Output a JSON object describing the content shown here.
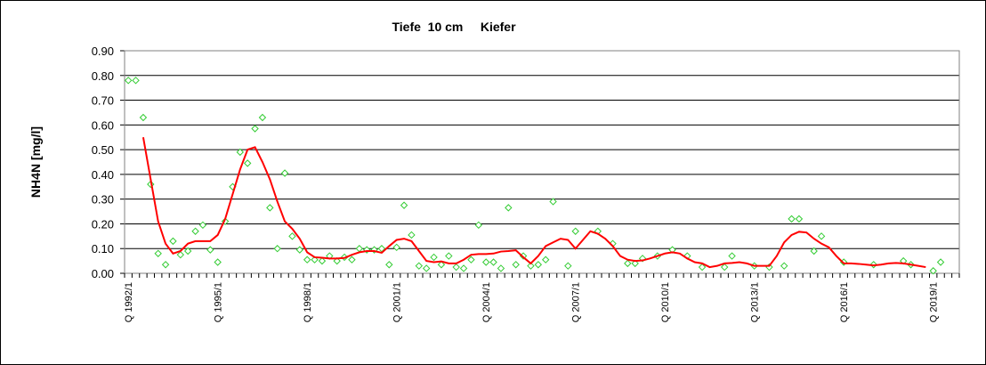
{
  "chart_data": {
    "type": "line",
    "title": "Tiefe  10 cm     Kiefer",
    "y_label": "NH4N [mg/l]",
    "categories": [
      "Q 1992/1",
      null,
      null,
      null,
      null,
      null,
      null,
      null,
      null,
      null,
      null,
      null,
      "Q 1995/1",
      null,
      null,
      null,
      null,
      null,
      null,
      null,
      null,
      null,
      null,
      null,
      "Q 1998/1",
      null,
      null,
      null,
      null,
      null,
      null,
      null,
      null,
      null,
      null,
      null,
      "Q 2001/1",
      null,
      null,
      null,
      null,
      null,
      null,
      null,
      null,
      null,
      null,
      null,
      "Q 2004/1",
      null,
      null,
      null,
      null,
      null,
      null,
      null,
      null,
      null,
      null,
      null,
      "Q 2007/1",
      null,
      null,
      null,
      null,
      null,
      null,
      null,
      null,
      null,
      null,
      null,
      "Q 2010/1",
      null,
      null,
      null,
      null,
      null,
      null,
      null,
      null,
      null,
      null,
      null,
      "Q 2013/1",
      null,
      null,
      null,
      null,
      null,
      null,
      null,
      null,
      null,
      null,
      null,
      "Q 2016/1",
      null,
      null,
      null,
      null,
      null,
      null,
      null,
      null,
      null,
      null,
      null,
      "Q 2019/1",
      null,
      null,
      null
    ],
    "series": [
      {
        "mode": "markers",
        "color": "#33cc33",
        "values": [
          0.78,
          0.78,
          0.63,
          0.36,
          0.08,
          0.035,
          0.13,
          0.075,
          0.09,
          0.17,
          0.195,
          0.095,
          0.045,
          0.21,
          0.35,
          0.49,
          0.445,
          0.585,
          0.63,
          0.265,
          0.1,
          0.405,
          0.15,
          0.095,
          0.055,
          0.055,
          0.05,
          0.07,
          0.05,
          0.065,
          0.055,
          0.1,
          0.095,
          0.095,
          0.1,
          0.035,
          0.105,
          0.275,
          0.155,
          0.03,
          0.02,
          0.065,
          0.035,
          0.07,
          0.025,
          0.02,
          0.055,
          0.195,
          0.045,
          0.045,
          0.02,
          0.265,
          0.035,
          0.07,
          0.03,
          0.035,
          0.055,
          0.29,
          null,
          0.03,
          0.17,
          null,
          null,
          0.17,
          null,
          0.12,
          null,
          0.04,
          0.04,
          0.06,
          null,
          0.07,
          null,
          0.095,
          null,
          0.07,
          null,
          0.025,
          null,
          null,
          0.025,
          0.07,
          null,
          null,
          0.03,
          null,
          0.025,
          null,
          0.03,
          0.22,
          0.22,
          null,
          0.09,
          0.15,
          null,
          null,
          0.045,
          null,
          null,
          null,
          0.035,
          null,
          null,
          null,
          0.05,
          0.035,
          null,
          null,
          0.01,
          0.045,
          null,
          null
        ]
      },
      {
        "mode": "line",
        "color": "#ff0000",
        "values": [
          null,
          null,
          0.55,
          0.38,
          0.21,
          0.12,
          0.08,
          0.09,
          0.12,
          0.13,
          0.13,
          0.13,
          0.155,
          0.22,
          0.32,
          0.42,
          0.5,
          0.51,
          0.45,
          0.38,
          0.29,
          0.21,
          0.18,
          0.14,
          0.085,
          0.065,
          0.063,
          0.06,
          0.06,
          0.062,
          0.075,
          0.085,
          0.09,
          0.09,
          0.083,
          0.11,
          0.135,
          0.14,
          0.13,
          0.09,
          0.05,
          0.045,
          0.048,
          0.04,
          0.04,
          0.055,
          0.075,
          0.078,
          0.078,
          0.08,
          0.088,
          0.09,
          0.093,
          0.065,
          0.04,
          0.07,
          0.11,
          0.125,
          0.14,
          0.135,
          0.1,
          0.135,
          0.17,
          0.16,
          0.14,
          0.11,
          0.07,
          0.055,
          0.05,
          0.052,
          0.06,
          0.07,
          0.08,
          0.085,
          0.08,
          0.06,
          0.045,
          0.04,
          0.025,
          0.03,
          0.04,
          0.042,
          0.045,
          0.04,
          0.03,
          0.03,
          0.03,
          0.07,
          0.125,
          0.155,
          0.168,
          0.165,
          0.14,
          0.12,
          0.105,
          0.07,
          0.04,
          0.04,
          0.038,
          0.035,
          0.032,
          0.035,
          0.04,
          0.042,
          0.04,
          0.035,
          0.03,
          0.025,
          null,
          null,
          null,
          null
        ]
      }
    ],
    "ylim": [
      0,
      0.9
    ],
    "yticks": [
      {
        "value": 0,
        "label": "0.00"
      },
      {
        "value": 0.1,
        "label": "0.10"
      },
      {
        "value": 0.2,
        "label": "0.20"
      },
      {
        "value": 0.3,
        "label": "0.30"
      },
      {
        "value": 0.4,
        "label": "0.40"
      },
      {
        "value": 0.5,
        "label": "0.50"
      },
      {
        "value": 0.6,
        "label": "0.60"
      },
      {
        "value": 0.7,
        "label": "0.70"
      },
      {
        "value": 0.8,
        "label": "0.80"
      },
      {
        "value": 0.9,
        "label": "0.90"
      }
    ],
    "grid": true
  }
}
